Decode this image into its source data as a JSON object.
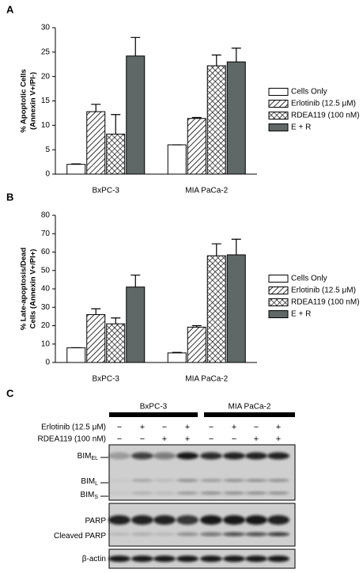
{
  "chart_data": [
    {
      "type": "bar",
      "title": "A",
      "ylabel": [
        "% Apoptotic Cells",
        "(Annexin V+/PI-)"
      ],
      "categories": [
        "BxPC-3",
        "MIA PaCa-2"
      ],
      "ylim": [
        0,
        30
      ],
      "yticks": [
        0,
        5,
        10,
        15,
        20,
        25,
        30
      ],
      "series": [
        {
          "name": "Cells Only",
          "color": "#ffffff",
          "values": [
            2.0,
            6.0
          ],
          "errors": [
            0.1,
            0
          ]
        },
        {
          "name": "Erlotinib (12.5 μM)",
          "color": "#ffffff",
          "pattern": "diagonal",
          "values": [
            12.8,
            11.4
          ],
          "errors": [
            1.5,
            0.2
          ]
        },
        {
          "name": "RDEA119 (100 nM)",
          "color": "#ffffff",
          "pattern": "crosshatch",
          "values": [
            8.2,
            22.2
          ],
          "errors": [
            4.0,
            2.2
          ]
        },
        {
          "name": "E + R",
          "color": "#5f6866",
          "values": [
            24.2,
            23.0
          ],
          "errors": [
            3.8,
            2.8
          ]
        }
      ]
    },
    {
      "type": "bar",
      "title": "B",
      "ylabel": [
        "% Late-apoptosis/Dead",
        "Cells (Annexin V+/PI+)"
      ],
      "categories": [
        "BxPC-3",
        "MIA PaCa-2"
      ],
      "ylim": [
        0,
        80
      ],
      "yticks": [
        0,
        10,
        20,
        30,
        40,
        50,
        60,
        70,
        80
      ],
      "series": [
        {
          "name": "Cells Only",
          "color": "#ffffff",
          "values": [
            8.0,
            5.2
          ],
          "errors": [
            0,
            0.3
          ]
        },
        {
          "name": "Erlotinib (12.5 μM)",
          "color": "#ffffff",
          "pattern": "diagonal",
          "values": [
            26.0,
            19.2
          ],
          "errors": [
            3.2,
            0.8
          ]
        },
        {
          "name": "RDEA119 (100 nM)",
          "color": "#ffffff",
          "pattern": "crosshatch",
          "values": [
            21.0,
            58.0
          ],
          "errors": [
            3.2,
            6.5
          ]
        },
        {
          "name": "E + R",
          "color": "#5f6866",
          "values": [
            41.0,
            58.5
          ],
          "errors": [
            6.5,
            8.5
          ]
        }
      ]
    }
  ],
  "blot": {
    "title": "C",
    "cell_lines": [
      "BxPC-3",
      "MIA PaCa-2"
    ],
    "treatments": [
      {
        "name": "Erlotinib (12.5 μM)",
        "signs": [
          "−",
          "+",
          "−",
          "+",
          "−",
          "+",
          "−",
          "+"
        ]
      },
      {
        "name": "RDEA119 (100 nM)",
        "signs": [
          "−",
          "−",
          "+",
          "+",
          "−",
          "−",
          "+",
          "+"
        ]
      }
    ],
    "bands": [
      {
        "label": "BIM",
        "sub": "EL"
      },
      {
        "label": "BIM",
        "sub": "L"
      },
      {
        "label": "BIM",
        "sub": "S"
      },
      {
        "label": "PARP"
      },
      {
        "label": "Cleaved PARP"
      },
      {
        "label": "β-actin"
      }
    ]
  }
}
